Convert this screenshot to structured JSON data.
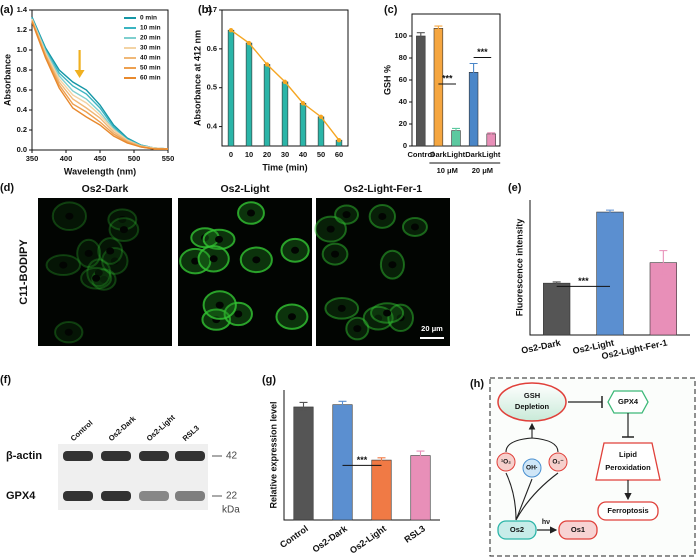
{
  "panel_labels": [
    "(a)",
    "(b)",
    "(c)",
    "(d)",
    "(e)",
    "(f)",
    "(g)",
    "(h)"
  ],
  "chart_data": [
    {
      "type": "line",
      "x_label": "Wavelength (nm)",
      "y_label": "Absorbance",
      "x": [
        350,
        370,
        390,
        410,
        430,
        450,
        470,
        490,
        510,
        530,
        550
      ],
      "xlim": [
        350,
        550
      ],
      "xticks": [
        350,
        400,
        450,
        500,
        550
      ],
      "ylim": [
        0,
        1.4
      ],
      "yticks": [
        {
          "value": 0,
          "label": "0.0"
        },
        0.2,
        0.4,
        0.6,
        0.8,
        {
          "value": 1,
          "label": "1.0"
        },
        1.2,
        1.4
      ],
      "legend": "top-right",
      "series": [
        {
          "name": "0 min",
          "color": "#1496a6",
          "values": [
            1.33,
            1.02,
            0.8,
            0.68,
            0.6,
            0.45,
            0.25,
            0.12,
            0.05,
            0.02,
            0.01
          ]
        },
        {
          "name": "10 min",
          "color": "#3bb4c1",
          "values": [
            1.32,
            1.0,
            0.77,
            0.64,
            0.56,
            0.42,
            0.23,
            0.11,
            0.05,
            0.02,
            0.01
          ]
        },
        {
          "name": "20 min",
          "color": "#7fcfcf",
          "values": [
            1.31,
            0.99,
            0.74,
            0.59,
            0.51,
            0.38,
            0.21,
            0.1,
            0.04,
            0.02,
            0.01
          ]
        },
        {
          "name": "30 min",
          "color": "#f3d3a4",
          "values": [
            1.31,
            0.97,
            0.71,
            0.55,
            0.47,
            0.35,
            0.2,
            0.1,
            0.04,
            0.02,
            0.01
          ]
        },
        {
          "name": "40 min",
          "color": "#f0b878",
          "values": [
            1.3,
            0.95,
            0.68,
            0.51,
            0.42,
            0.32,
            0.18,
            0.09,
            0.04,
            0.01,
            0.01
          ]
        },
        {
          "name": "50 min",
          "color": "#eda050",
          "values": [
            1.29,
            0.94,
            0.65,
            0.46,
            0.38,
            0.28,
            0.16,
            0.08,
            0.03,
            0.01,
            0.01
          ]
        },
        {
          "name": "60 min",
          "color": "#e8892d",
          "values": [
            1.28,
            0.92,
            0.62,
            0.42,
            0.33,
            0.25,
            0.14,
            0.07,
            0.03,
            0.01,
            0.01
          ]
        }
      ]
    },
    {
      "type": "bar",
      "x_label": "Time (min)",
      "y_label": "Absorbance at 412 nm",
      "categories": [
        "0",
        "10",
        "20",
        "30",
        "40",
        "50",
        "60"
      ],
      "values": [
        0.648,
        0.615,
        0.56,
        0.515,
        0.46,
        0.425,
        0.365
      ],
      "color": "#2bb5a8",
      "line_color": "#f5a623",
      "ylim": [
        0.35,
        0.7
      ],
      "yticks": [
        0.4,
        0.5,
        0.6,
        0.7
      ]
    },
    {
      "type": "bar",
      "y_label": "GSH %",
      "categories": [
        "Control",
        "Dark",
        "Light",
        "Dark",
        "Light"
      ],
      "group_labels": [
        "10 μM",
        "20 μM"
      ],
      "values": [
        100,
        107,
        14,
        67,
        11
      ],
      "errors": [
        3,
        2,
        2,
        8,
        1
      ],
      "colors": [
        "#555555",
        "#f5a640",
        "#5cc9a0",
        "#4a86c8",
        "#e88fb8"
      ],
      "ylim": [
        0,
        120
      ],
      "yticks": [
        0,
        20,
        40,
        60,
        80,
        100
      ],
      "annotations": [
        "***",
        "***"
      ]
    },
    {
      "type": "bar",
      "y_label": "Fluorescence intensity",
      "categories": [
        "Os2-Dark",
        "Os2-Light",
        "Os2-Light-Fer-1"
      ],
      "values": [
        21.5,
        51,
        30
      ],
      "errors": [
        0.5,
        0.8,
        5
      ],
      "colors": [
        "#555555",
        "#5b8fd0",
        "#e88fb8"
      ],
      "ylim": [
        0,
        56
      ],
      "annotations": [
        "***"
      ]
    },
    {
      "type": "bar",
      "y_label": "Relative expression level",
      "categories": [
        "Control",
        "Os2-Dark",
        "Os2-Light",
        "RSL3"
      ],
      "values": [
        1.0,
        1.02,
        0.53,
        0.57
      ],
      "errors": [
        0.04,
        0.03,
        0.02,
        0.04
      ],
      "colors": [
        "#555555",
        "#5b8fd0",
        "#f07a45",
        "#e88fb8"
      ],
      "ylim": [
        0,
        1.15
      ],
      "annotations": [
        "***"
      ]
    }
  ],
  "microscopy": {
    "row_label": "C11-BODIPY",
    "titles": [
      "Os2-Dark",
      "Os2-Light",
      "Os2-Light-Fer-1"
    ],
    "scale_bar": "20 μm"
  },
  "blot": {
    "lanes": [
      "Control",
      "Os2-Dark",
      "Os2-Light",
      "RSL3"
    ],
    "proteins": [
      "β-actin",
      "GPX4"
    ],
    "markers": [
      "42",
      "22"
    ],
    "unit": "kDa"
  },
  "diagram": {
    "gsh": [
      "GSH",
      "Depletion"
    ],
    "gpx4": "GPX4",
    "lipid": [
      "Lipid",
      "Peroxidation"
    ],
    "ferroptosis": "Ferroptosis",
    "ros": [
      "¹O₂",
      "OH·",
      "O₂⁻"
    ],
    "os2": "Os2",
    "os1": "Os1",
    "light": "hν"
  }
}
